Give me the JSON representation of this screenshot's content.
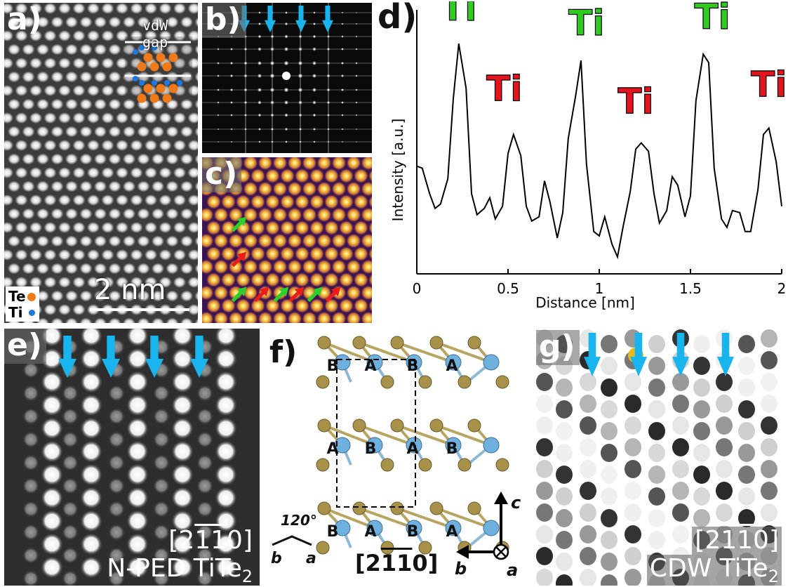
{
  "panels": {
    "a": {
      "label": "a)",
      "vdw_label": "vdW gap",
      "scale_label": "2 nm",
      "legend": [
        {
          "name": "Te",
          "color": "#f07a1a"
        },
        {
          "name": "Ti",
          "color": "#1e78e0"
        }
      ]
    },
    "b": {
      "label": "b)"
    },
    "c": {
      "label": "c)"
    },
    "d": {
      "label": "d)"
    },
    "e": {
      "label": "e)",
      "direction_prefix": "[2",
      "d1": "1",
      "d2": "1",
      "direction_suffix": "0]",
      "caption_main": "N-PED TiTe",
      "caption_sub": "2"
    },
    "f": {
      "label": "f)",
      "angle_label": "120°",
      "left_b": "b",
      "left_a": "a",
      "direction_prefix": "[2",
      "d1": "1",
      "d2": "1",
      "direction_suffix": "0]",
      "axis_c": "c",
      "axis_b": "b",
      "axis_a": "a",
      "stacking_rows": [
        [
          "B",
          "A",
          "B",
          "A"
        ],
        [
          "A",
          "B",
          "A",
          "B"
        ],
        [
          "B",
          "A",
          "B",
          "A"
        ]
      ]
    },
    "g": {
      "label": "g)",
      "direction_prefix": "[2",
      "d1": "1",
      "d2": "1",
      "direction_suffix": "0]",
      "caption_main": "CDW TiTe",
      "caption_sub": "2"
    }
  },
  "colors": {
    "arrow_cyan": "#17b4ee",
    "ti_green": "#2ecc1f",
    "ti_red": "#e3141e",
    "te_atom": "#a89148",
    "ti_atom": "#6fb1de",
    "green_arrow": "#29d12a",
    "red_arrow": "#ee1b1b"
  },
  "chart_data": {
    "type": "line",
    "title": "",
    "xlabel": "Distance [nm]",
    "ylabel": "Intensity [a.u.]",
    "xlim": [
      0,
      2
    ],
    "xticks": [
      0,
      0.5,
      1,
      1.5,
      2
    ],
    "xtick_labels": [
      "0",
      "0.5",
      "1",
      "1.5",
      "2"
    ],
    "x": [
      0,
      0.03,
      0.07,
      0.1,
      0.13,
      0.17,
      0.2,
      0.23,
      0.27,
      0.3,
      0.33,
      0.37,
      0.4,
      0.43,
      0.47,
      0.5,
      0.53,
      0.57,
      0.6,
      0.63,
      0.67,
      0.7,
      0.73,
      0.77,
      0.8,
      0.83,
      0.87,
      0.9,
      0.93,
      0.97,
      1.0,
      1.03,
      1.07,
      1.1,
      1.13,
      1.17,
      1.2,
      1.23,
      1.27,
      1.3,
      1.33,
      1.37,
      1.4,
      1.43,
      1.47,
      1.5,
      1.53,
      1.57,
      1.6,
      1.63,
      1.67,
      1.7,
      1.73,
      1.77,
      1.8,
      1.83,
      1.87,
      1.9,
      1.93,
      1.97,
      2.0
    ],
    "y": [
      0.41,
      0.4,
      0.28,
      0.21,
      0.23,
      0.35,
      0.73,
      0.99,
      0.78,
      0.28,
      0.18,
      0.21,
      0.26,
      0.16,
      0.22,
      0.47,
      0.56,
      0.46,
      0.22,
      0.15,
      0.17,
      0.34,
      0.24,
      0.07,
      0.19,
      0.54,
      0.74,
      0.91,
      0.42,
      0.1,
      0.08,
      0.17,
      0.04,
      -0.02,
      0.12,
      0.29,
      0.49,
      0.52,
      0.48,
      0.28,
      0.14,
      0.2,
      0.36,
      0.32,
      0.17,
      0.27,
      0.72,
      0.94,
      0.9,
      0.4,
      0.16,
      0.12,
      0.2,
      0.19,
      0.1,
      0.1,
      0.3,
      0.56,
      0.59,
      0.43,
      0.22
    ],
    "ylim": [
      -0.1,
      1.15
    ],
    "annotations": [
      {
        "text": "Ti",
        "color": "green",
        "x": 0.23,
        "y": 1.1
      },
      {
        "text": "Ti",
        "color": "red",
        "x": 0.48,
        "y": 0.72
      },
      {
        "text": "Ti",
        "color": "green",
        "x": 0.93,
        "y": 1.03
      },
      {
        "text": "Ti",
        "color": "red",
        "x": 1.2,
        "y": 0.66
      },
      {
        "text": "Ti",
        "color": "green",
        "x": 1.62,
        "y": 1.06
      },
      {
        "text": "Ti",
        "color": "red",
        "x": 1.93,
        "y": 0.74
      }
    ]
  }
}
